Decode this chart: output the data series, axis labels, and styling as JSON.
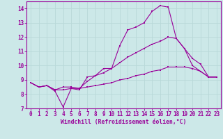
{
  "title": "",
  "xlabel": "Windchill (Refroidissement éolien,°C)",
  "ylabel": "",
  "background_color": "#cce8e8",
  "grid_color": "#b8d8d8",
  "line_color": "#990099",
  "xlim": [
    -0.5,
    23.5
  ],
  "ylim": [
    7,
    14.5
  ],
  "yticks": [
    7,
    8,
    9,
    10,
    11,
    12,
    13,
    14
  ],
  "xticks": [
    0,
    1,
    2,
    3,
    4,
    5,
    6,
    7,
    8,
    9,
    10,
    11,
    12,
    13,
    14,
    15,
    16,
    17,
    18,
    19,
    20,
    21,
    22,
    23
  ],
  "line1_x": [
    0,
    1,
    2,
    3,
    4,
    5,
    6,
    7,
    8,
    9,
    10,
    11,
    12,
    13,
    14,
    15,
    16,
    17,
    18,
    19,
    20,
    21,
    22,
    23
  ],
  "line1_y": [
    8.8,
    8.5,
    8.6,
    8.2,
    7.1,
    8.4,
    8.3,
    9.2,
    9.3,
    9.8,
    9.8,
    11.4,
    12.5,
    12.7,
    13.0,
    13.8,
    14.2,
    14.1,
    11.9,
    11.2,
    10.0,
    9.6,
    9.2,
    9.2
  ],
  "line2_x": [
    0,
    1,
    2,
    3,
    4,
    5,
    6,
    7,
    8,
    9,
    10,
    11,
    12,
    13,
    14,
    15,
    16,
    17,
    18,
    19,
    20,
    21,
    22,
    23
  ],
  "line2_y": [
    8.8,
    8.5,
    8.6,
    8.3,
    8.5,
    8.5,
    8.4,
    8.9,
    9.3,
    9.5,
    9.8,
    10.2,
    10.6,
    10.9,
    11.2,
    11.5,
    11.7,
    12.0,
    11.9,
    11.2,
    10.5,
    10.1,
    9.2,
    9.2
  ],
  "line3_x": [
    0,
    1,
    2,
    3,
    4,
    5,
    6,
    7,
    8,
    9,
    10,
    11,
    12,
    13,
    14,
    15,
    16,
    17,
    18,
    19,
    20,
    21,
    22,
    23
  ],
  "line3_y": [
    8.8,
    8.5,
    8.6,
    8.3,
    8.3,
    8.4,
    8.4,
    8.5,
    8.6,
    8.7,
    8.8,
    9.0,
    9.1,
    9.3,
    9.4,
    9.6,
    9.7,
    9.9,
    9.9,
    9.9,
    9.8,
    9.6,
    9.2,
    9.2
  ],
  "marker_size": 2.0,
  "line_width": 0.8,
  "tick_fontsize": 5.5,
  "xlabel_fontsize": 5.8
}
